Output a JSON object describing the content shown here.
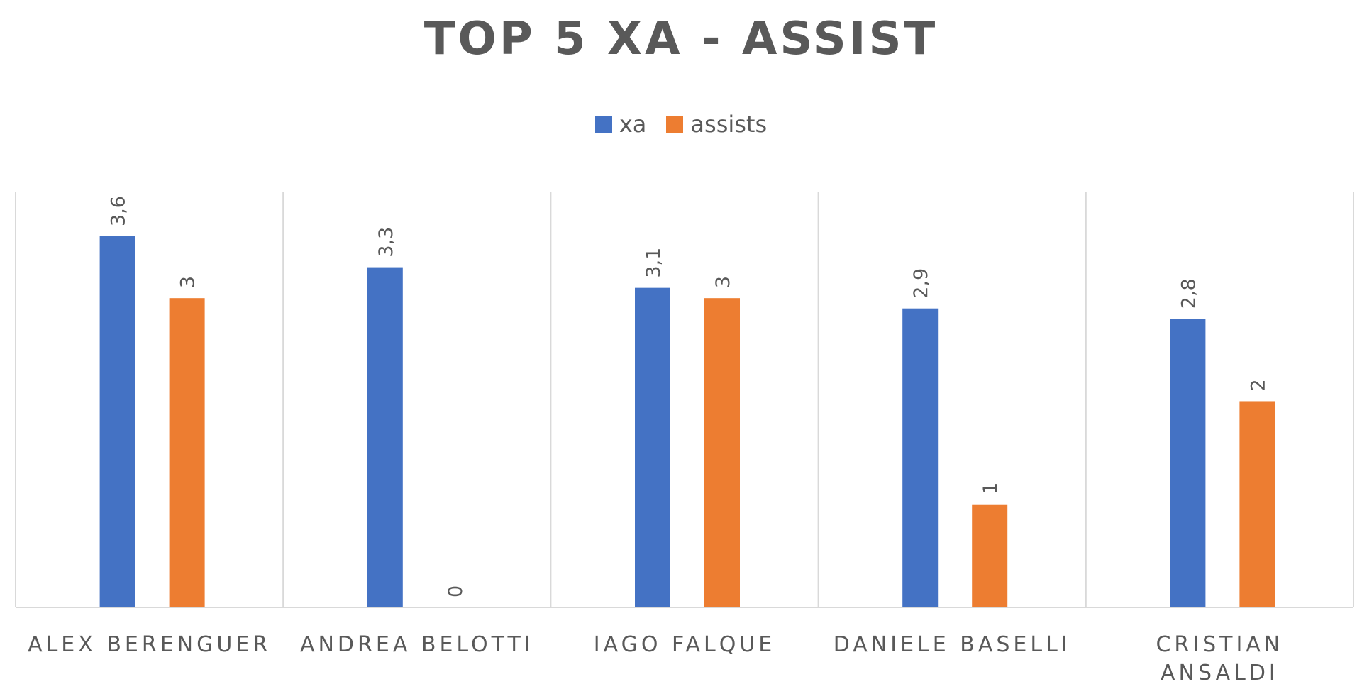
{
  "chart_data": {
    "type": "bar",
    "title": "TOP 5 XA - ASSIST",
    "xlabel": "",
    "ylabel": "",
    "categories": [
      [
        "ALEX BERENGUER"
      ],
      [
        "ANDREA BELOTTI"
      ],
      [
        "IAGO FALQUE"
      ],
      [
        "DANIELE BASELLI"
      ],
      [
        "CRISTIAN",
        "ANSALDI"
      ]
    ],
    "series": [
      {
        "name": "xa",
        "color": "#4472C4",
        "values": [
          3.6,
          3.3,
          3.1,
          2.9,
          2.8
        ],
        "labels": [
          "3,6",
          "3,3",
          "3,1",
          "2,9",
          "2,8"
        ]
      },
      {
        "name": "assists",
        "color": "#ED7D31",
        "values": [
          3,
          0,
          3,
          1,
          2
        ],
        "labels": [
          "3",
          "0",
          "3",
          "1",
          "2"
        ]
      }
    ],
    "ylim": [
      0,
      4
    ],
    "grid": "vertical separators only",
    "legend_position": "top-center",
    "data_labels": "above bars, rotated"
  }
}
